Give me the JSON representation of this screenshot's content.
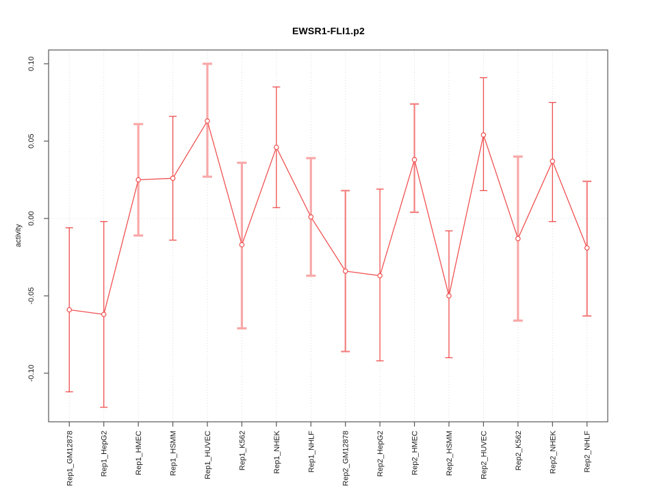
{
  "title": "EWSR1-FLI1.p2",
  "colors": {
    "series": "#f05050",
    "errorbar_thin": "#ee4d4d",
    "errorbar_medium": "#f38080",
    "errorbar_thick": "#f8a8a8",
    "marker_fill": "#ffffff",
    "grid": "#d9d9d9",
    "axis": "#555555",
    "text": "#1a1a1a"
  },
  "chart_data": {
    "type": "line",
    "title": "EWSR1-FLI1.p2",
    "xlabel": "",
    "ylabel": "activity",
    "legend": "none",
    "marker": "open-circle",
    "grid": {
      "vertical": "dotted-per-category",
      "horizontal_zero_line": "dotted"
    },
    "categories": [
      "Rep1_GM12878",
      "Rep1_HepG2",
      "Rep1_HMEC",
      "Rep1_HSMM",
      "Rep1_HUVEC",
      "Rep1_K562",
      "Rep1_NHEK",
      "Rep1_NHLF",
      "Rep2_GM12878",
      "Rep2_HepG2",
      "Rep2_HMEC",
      "Rep2_HSMM",
      "Rep2_HUVEC",
      "Rep2_K562",
      "Rep2_NHEK",
      "Rep2_NHLF"
    ],
    "series": [
      {
        "name": "activity",
        "values": [
          -0.059,
          -0.062,
          0.025,
          0.026,
          0.063,
          -0.017,
          0.046,
          0.001,
          -0.034,
          -0.037,
          0.038,
          -0.05,
          0.054,
          -0.013,
          0.037,
          -0.019
        ],
        "error_high": [
          -0.006,
          -0.002,
          0.061,
          0.066,
          0.1,
          0.036,
          0.085,
          0.039,
          0.018,
          0.019,
          0.074,
          -0.008,
          0.091,
          0.04,
          0.075,
          0.024
        ],
        "error_low": [
          -0.112,
          -0.122,
          -0.011,
          -0.014,
          0.027,
          -0.071,
          0.007,
          -0.037,
          -0.086,
          -0.092,
          0.004,
          -0.09,
          0.018,
          -0.066,
          -0.002,
          -0.063
        ],
        "errorbar_weight": [
          "thin",
          "thin",
          "thick",
          "thin",
          "thick",
          "thick",
          "thin",
          "thick",
          "medium",
          "thin",
          "medium",
          "thin",
          "thin",
          "thick",
          "thin",
          "medium"
        ]
      }
    ],
    "yticks": [
      0.1,
      0.05,
      0.0,
      -0.05,
      -0.1
    ],
    "ytick_labels": [
      "0.10",
      "0.05",
      "0.00",
      "-0.05",
      "-0.10"
    ],
    "ylim": [
      -0.1314,
      0.1089
    ],
    "x_expansion": 0.6
  }
}
